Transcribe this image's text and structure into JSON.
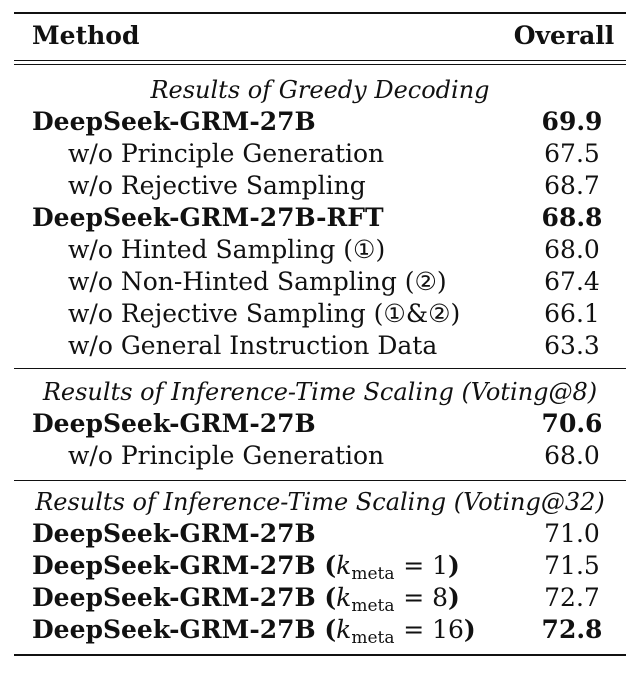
{
  "header": {
    "method": "Method",
    "overall": "Overall"
  },
  "sections": [
    {
      "title": "Results of Greedy Decoding",
      "rows": [
        {
          "method": "DeepSeek-GRM-27B",
          "overall": "69.9"
        },
        {
          "method": "w/o Principle Generation",
          "overall": "67.5"
        },
        {
          "method": "w/o Rejective Sampling",
          "overall": "68.7"
        },
        {
          "method": "DeepSeek-GRM-27B-RFT",
          "overall": "68.8"
        },
        {
          "method": "w/o Hinted Sampling (①)",
          "overall": "68.0"
        },
        {
          "method": "w/o Non-Hinted Sampling (②)",
          "overall": "67.4"
        },
        {
          "method": "w/o Rejective Sampling (①&②)",
          "overall": "66.1"
        },
        {
          "method": "w/o General Instruction Data",
          "overall": "63.3"
        }
      ]
    },
    {
      "title": "Results of Inference-Time Scaling (Voting@8)",
      "rows": [
        {
          "method": "DeepSeek-GRM-27B",
          "overall": "70.6"
        },
        {
          "method": "w/o Principle Generation",
          "overall": "68.0"
        }
      ]
    },
    {
      "title": "Results of Inference-Time Scaling (Voting@32)",
      "rows": [
        {
          "method": "DeepSeek-GRM-27B",
          "overall": "71.0"
        },
        {
          "method": "DeepSeek-GRM-27B",
          "k_var": "k",
          "k_sub": "meta",
          "k_eq": "= 1",
          "overall": "71.5"
        },
        {
          "method": "DeepSeek-GRM-27B",
          "k_var": "k",
          "k_sub": "meta",
          "k_eq": "= 8",
          "overall": "72.7"
        },
        {
          "method": "DeepSeek-GRM-27B",
          "k_var": "k",
          "k_sub": "meta",
          "k_eq": "= 16",
          "overall": "72.8"
        }
      ]
    }
  ]
}
